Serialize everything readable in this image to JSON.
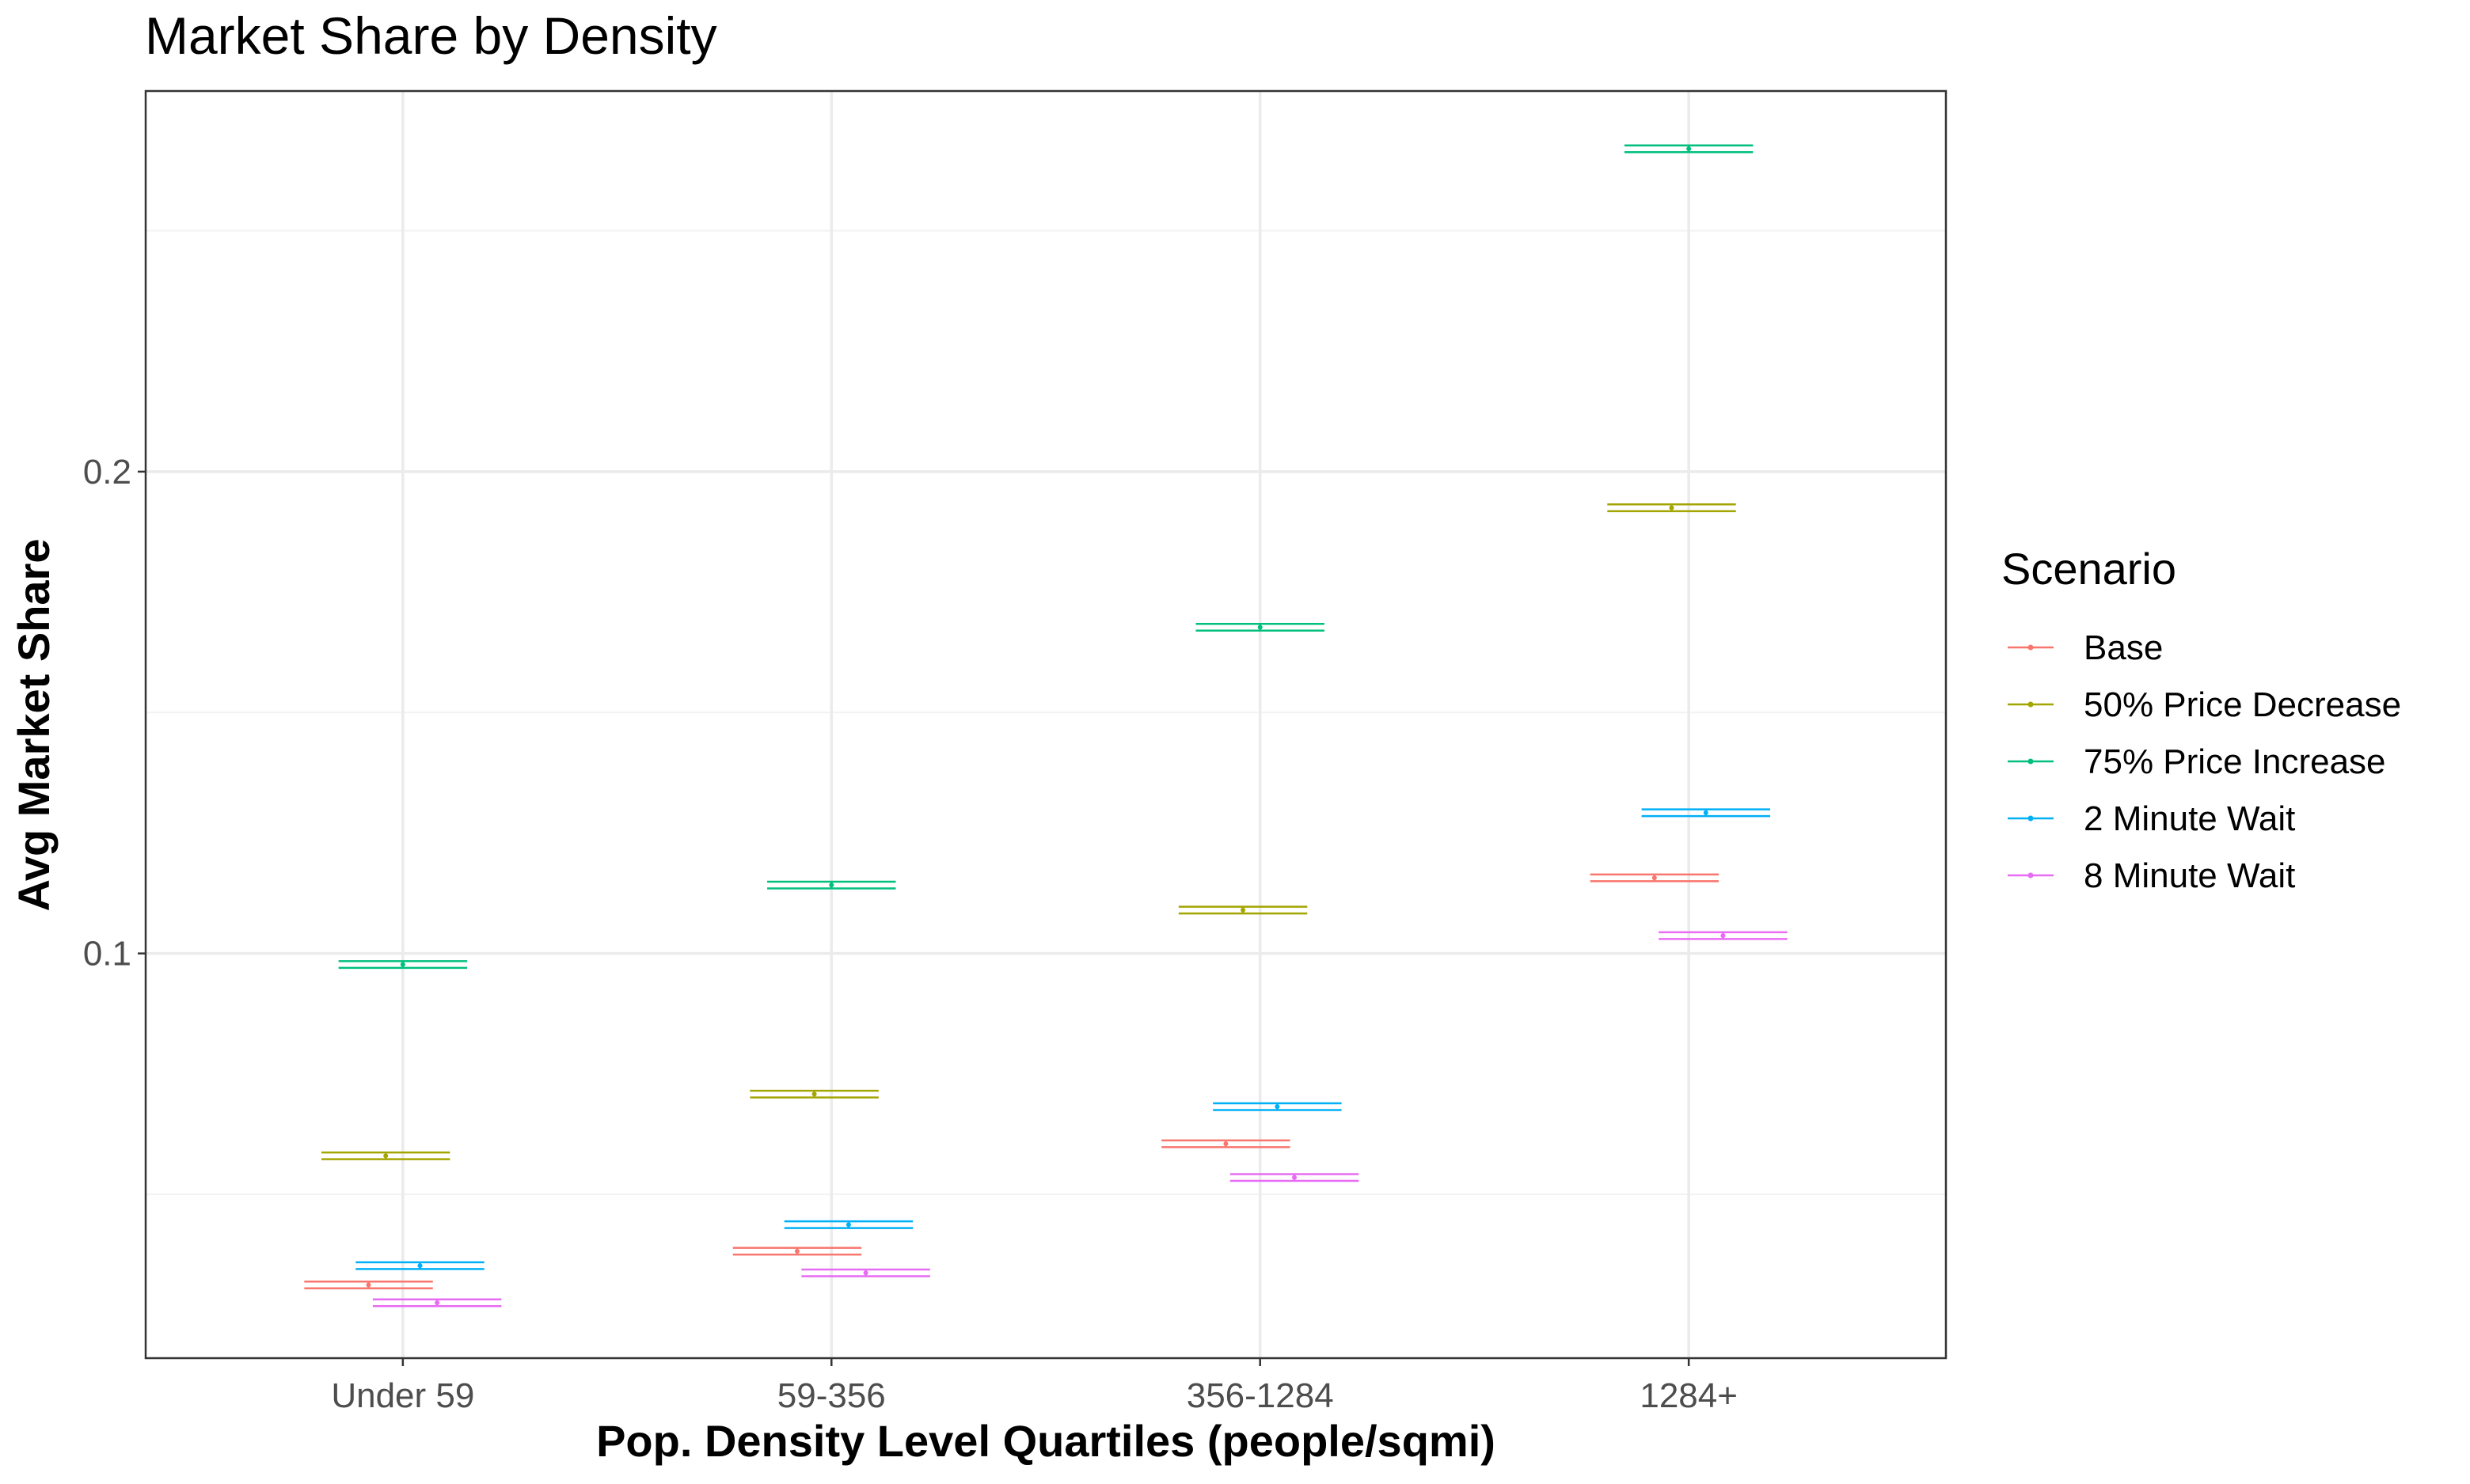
{
  "chart_data": {
    "type": "errorbar",
    "title": "Market Share by Density",
    "xlabel": "Pop. Density Level Quartiles (people/sqmi)",
    "ylabel": "Avg Market Share",
    "categories": [
      "Under 59",
      "59-356",
      "356-1284",
      "1284+"
    ],
    "ylim": [
      0.016,
      0.279
    ],
    "y_ticks": [
      0.1,
      0.2
    ],
    "y_tick_labels": [
      "0.1",
      "0.2"
    ],
    "grid": true,
    "legend": {
      "title": "Scenario",
      "position": "right"
    },
    "series": [
      {
        "name": "Base",
        "color": "#F8766D",
        "values": [
          0.0312,
          0.0382,
          0.0605,
          0.1157
        ],
        "error": [
          0.0007,
          0.0007,
          0.0007,
          0.0007
        ]
      },
      {
        "name": "50% Price Decrease",
        "color": "#A3A500",
        "values": [
          0.058,
          0.0708,
          0.109,
          0.1925
        ],
        "error": [
          0.0007,
          0.0007,
          0.0007,
          0.0007
        ]
      },
      {
        "name": "75% Price Increase",
        "color": "#00BF7D",
        "values": [
          0.0977,
          0.1142,
          0.1677,
          0.267
        ],
        "error": [
          0.0007,
          0.0007,
          0.0007,
          0.0007
        ]
      },
      {
        "name": "2 Minute Wait",
        "color": "#00B0F6",
        "values": [
          0.0352,
          0.0437,
          0.0682,
          0.1292
        ],
        "error": [
          0.0007,
          0.0007,
          0.0007,
          0.0007
        ]
      },
      {
        "name": "8 Minute Wait",
        "color": "#E76BF3",
        "values": [
          0.0275,
          0.0337,
          0.0535,
          0.1037
        ],
        "error": [
          0.0007,
          0.0007,
          0.0007,
          0.0007
        ]
      }
    ]
  }
}
